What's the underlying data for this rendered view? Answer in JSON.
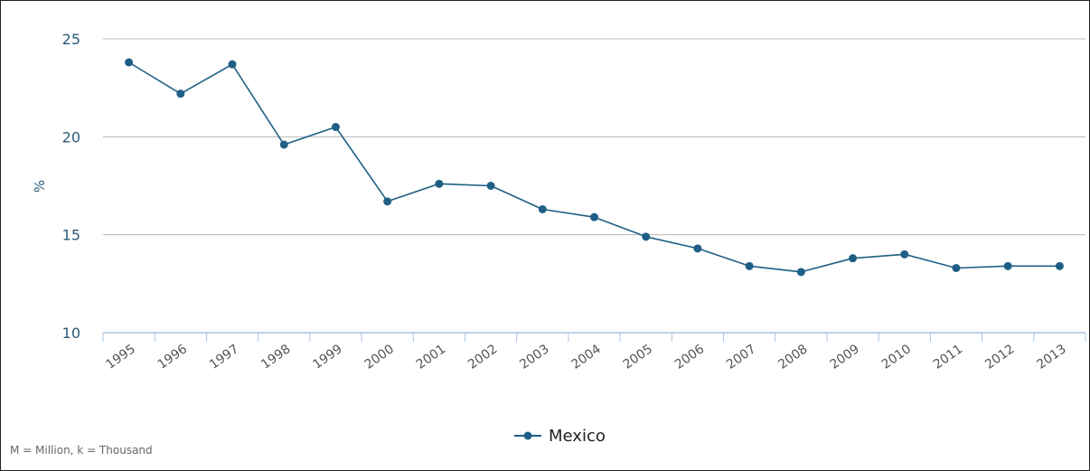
{
  "chart_data": {
    "type": "line",
    "x": [
      "1995",
      "1996",
      "1997",
      "1998",
      "1999",
      "2000",
      "2001",
      "2002",
      "2003",
      "2004",
      "2005",
      "2006",
      "2007",
      "2008",
      "2009",
      "2010",
      "2011",
      "2012",
      "2013"
    ],
    "series": [
      {
        "name": "Mexico",
        "values": [
          23.8,
          22.2,
          23.7,
          19.6,
          20.5,
          16.7,
          17.6,
          17.5,
          16.3,
          15.9,
          14.9,
          14.3,
          13.4,
          13.1,
          13.8,
          14.0,
          13.3,
          13.4,
          13.4
        ]
      }
    ],
    "ylabel": "%",
    "ylim": [
      10,
      25
    ],
    "yticks": [
      "10",
      "15",
      "20",
      "25"
    ],
    "grid": true,
    "legend_position": "bottom",
    "colors": {
      "line": "#1f5f85",
      "grid": "#b8b8b8",
      "axis": "#a9c4e0"
    }
  },
  "footnote": "M = Million, k = Thousand"
}
